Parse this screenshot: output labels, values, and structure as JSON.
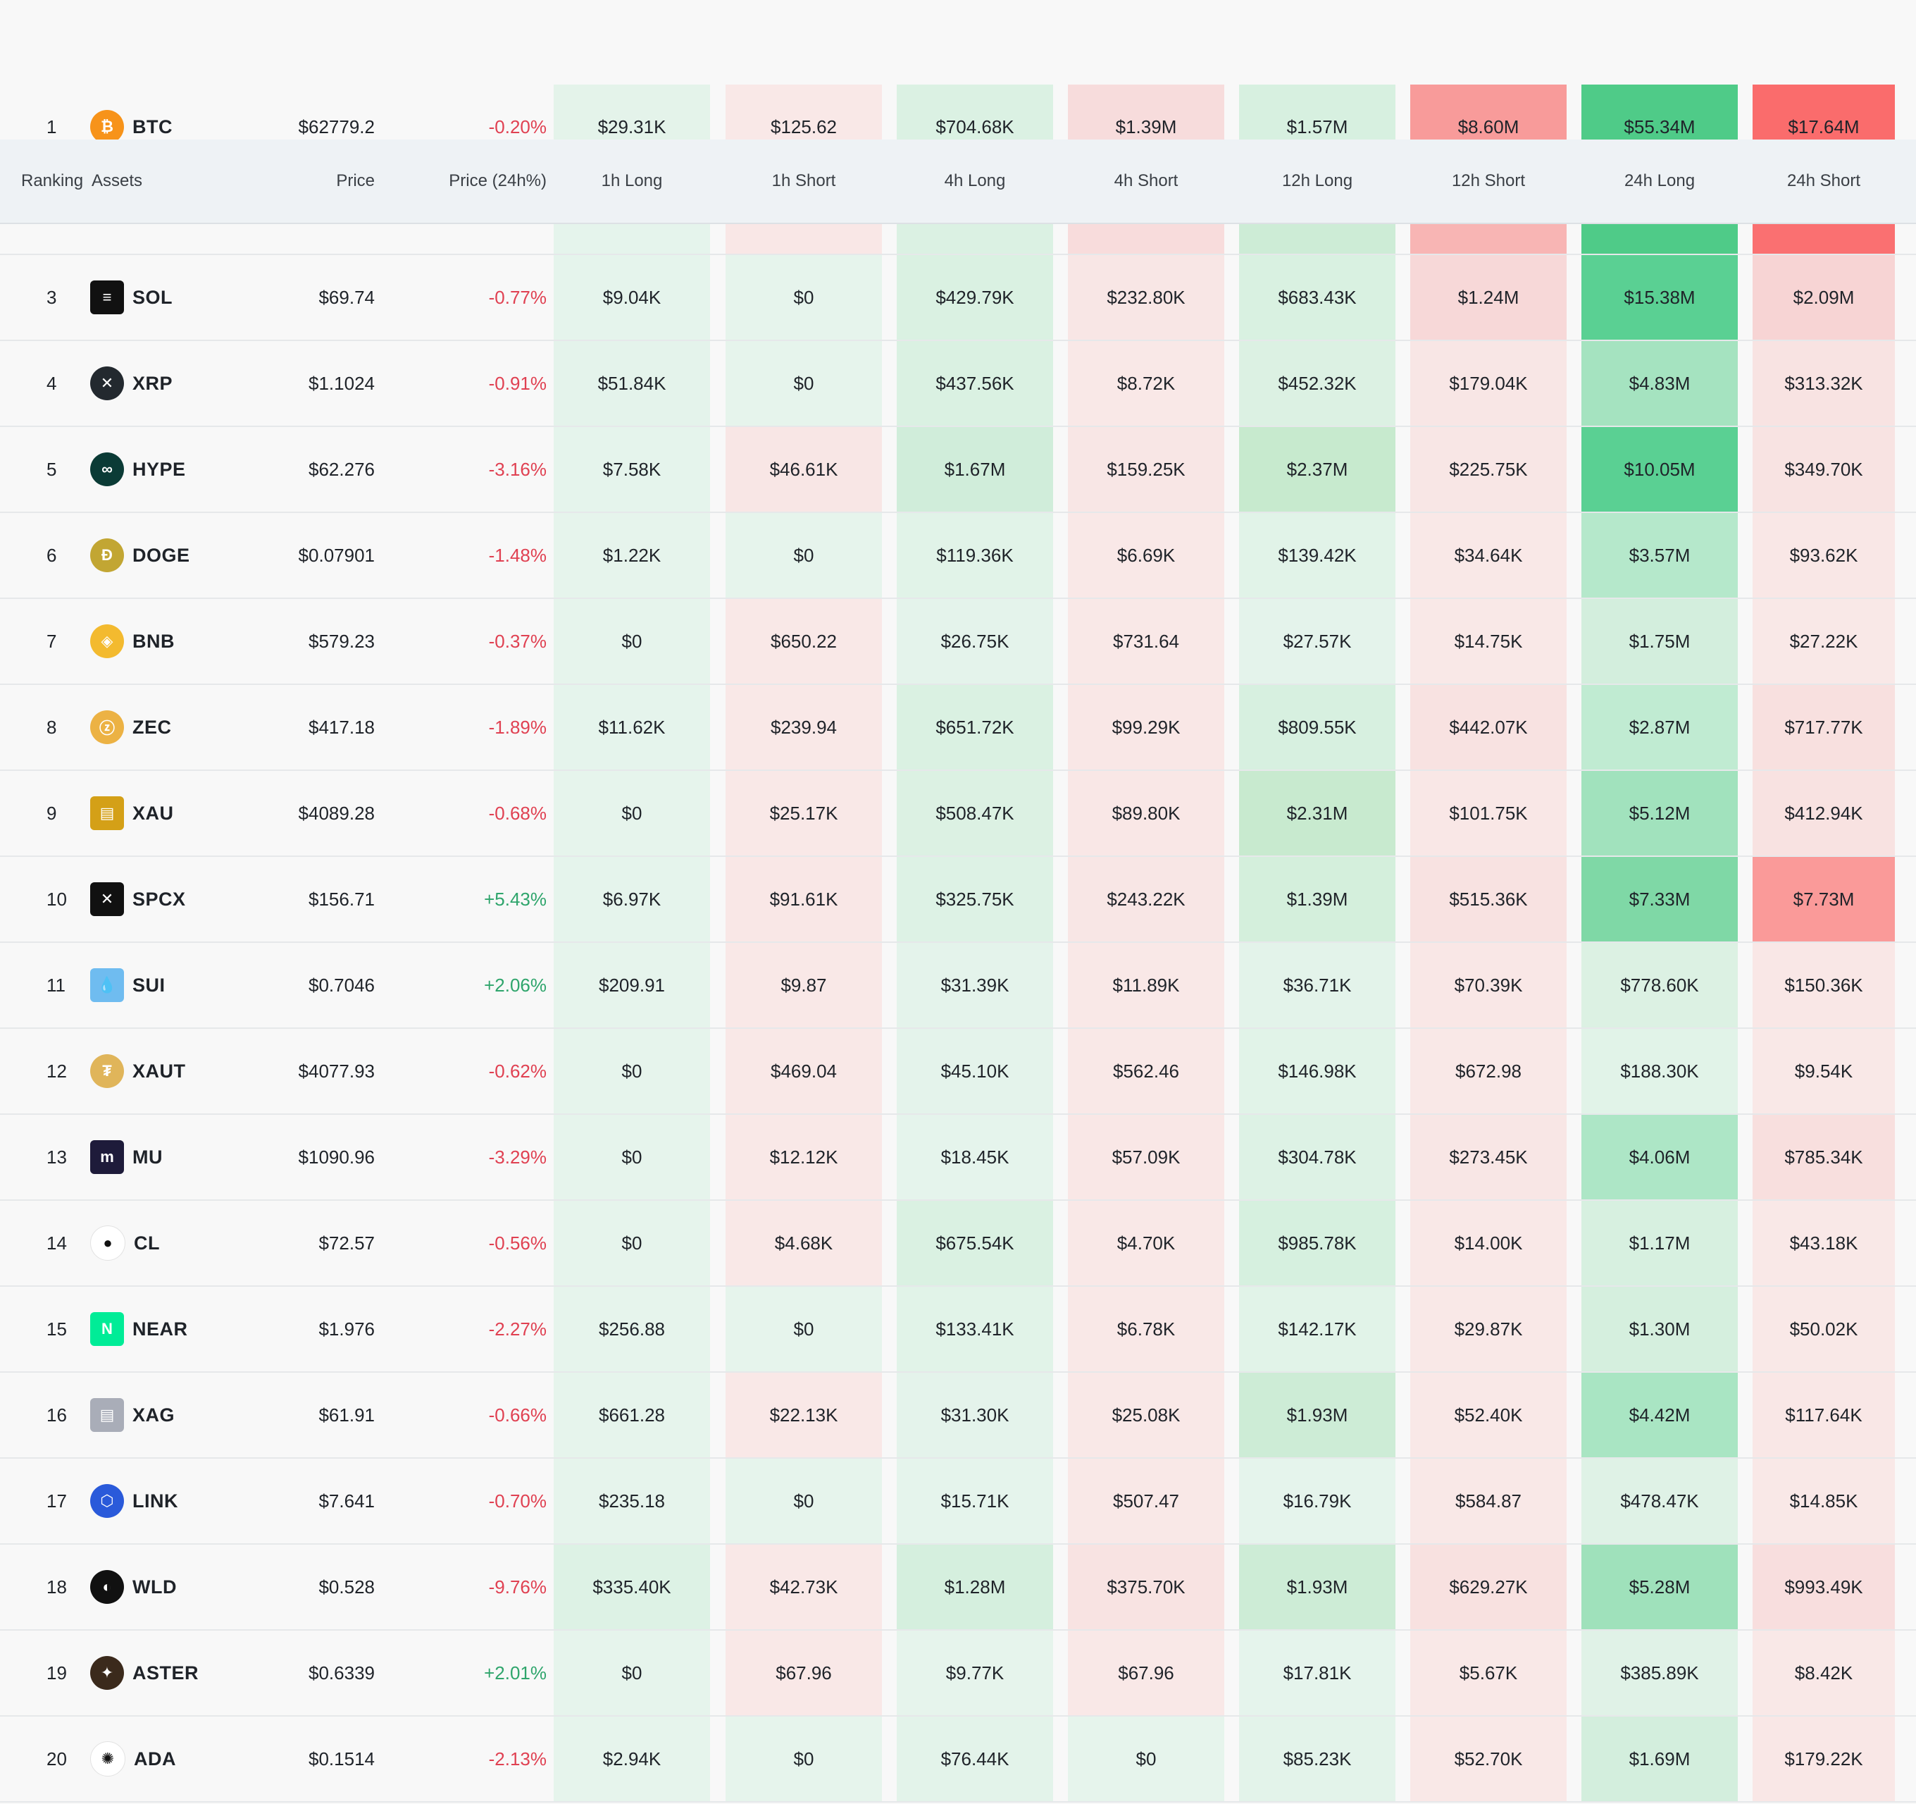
{
  "colors": {
    "negative_text": "#e04152",
    "positive_text": "#2fa56c",
    "header_bg": "#eef2f5",
    "page_bg": "#f8f8f8"
  },
  "header": {
    "ranking": "Ranking",
    "assets": "Assets",
    "price": "Price",
    "price_change": "Price (24h%)",
    "h1_long": "1h Long",
    "h1_short": "1h Short",
    "h4_long": "4h Long",
    "h4_short": "4h Short",
    "h12_long": "12h Long",
    "h12_short": "12h Short",
    "h24_long": "24h Long",
    "h24_short": "24h Short"
  },
  "rows": [
    {
      "rank": "1",
      "symbol": "BTC",
      "icon": "bitcoin-icon",
      "glyph": "₿",
      "icon_color": "#f7931a",
      "price": "$62779.2",
      "change": "-0.20%",
      "direction": "neg",
      "cells": [
        "$29.31K",
        "$125.62",
        "$704.68K",
        "$1.39M",
        "$1.57M",
        "$8.60M",
        "$55.34M",
        "$17.64M"
      ],
      "colors": [
        "#e4f3ea",
        "#f9e8e7",
        "#dbf1e3",
        "#f7dcdc",
        "#d7f0e0",
        "#f89b9a",
        "#4fcb88",
        "#fa6c6c"
      ]
    },
    {
      "rank": "3",
      "symbol": "SOL",
      "icon": "solana-icon",
      "glyph": "≡",
      "icon_color": "#111111",
      "sq": true,
      "price": "$69.74",
      "change": "-0.77%",
      "direction": "neg",
      "cells": [
        "$9.04K",
        "$0",
        "$429.79K",
        "$232.80K",
        "$683.43K",
        "$1.24M",
        "$15.38M",
        "$2.09M"
      ],
      "colors": [
        "#e5f4ec",
        "#e6f4ec",
        "#daf1e2",
        "#f8e6e5",
        "#d9f1e1",
        "#f7d8d8",
        "#5ad093",
        "#f7d4d4"
      ]
    },
    {
      "rank": "4",
      "symbol": "XRP",
      "icon": "xrp-icon",
      "glyph": "✕",
      "icon_color": "#23292f",
      "price": "$1.1024",
      "change": "-0.91%",
      "direction": "neg",
      "cells": [
        "$51.84K",
        "$0",
        "$437.56K",
        "$8.72K",
        "$452.32K",
        "$179.04K",
        "$4.83M",
        "$313.32K"
      ],
      "colors": [
        "#e4f3eb",
        "#e6f4ec",
        "#daf1e2",
        "#f9e8e7",
        "#dcf1e3",
        "#f8e6e5",
        "#a5e3c0",
        "#f8e3e2"
      ]
    },
    {
      "rank": "5",
      "symbol": "HYPE",
      "icon": "hyperliquid-icon",
      "glyph": "∞",
      "icon_color": "#0b3b36",
      "price": "$62.276",
      "change": "-3.16%",
      "direction": "neg",
      "cells": [
        "$7.58K",
        "$46.61K",
        "$1.67M",
        "$159.25K",
        "$2.37M",
        "$225.75K",
        "$10.05M",
        "$349.70K"
      ],
      "colors": [
        "#e5f4ec",
        "#f8e6e5",
        "#d0edda",
        "#f8e6e5",
        "#c7eace",
        "#f8e6e5",
        "#5ad093",
        "#f8e3e2"
      ]
    },
    {
      "rank": "6",
      "symbol": "DOGE",
      "icon": "dogecoin-icon",
      "glyph": "Ð",
      "icon_color": "#c2a633",
      "price": "$0.07901",
      "change": "-1.48%",
      "direction": "neg",
      "cells": [
        "$1.22K",
        "$0",
        "$119.36K",
        "$6.69K",
        "$139.42K",
        "$34.64K",
        "$3.57M",
        "$93.62K"
      ],
      "colors": [
        "#e6f4ec",
        "#e6f4ec",
        "#e1f3e8",
        "#f9e8e7",
        "#e1f3e8",
        "#f9e8e7",
        "#b5e8cb",
        "#f9e7e6"
      ]
    },
    {
      "rank": "7",
      "symbol": "BNB",
      "icon": "bnb-icon",
      "glyph": "◈",
      "icon_color": "#f3ba2f",
      "price": "$579.23",
      "change": "-0.37%",
      "direction": "neg",
      "cells": [
        "$0",
        "$650.22",
        "$26.75K",
        "$731.64",
        "$27.57K",
        "$14.75K",
        "$1.75M",
        "$27.22K"
      ],
      "colors": [
        "#e6f4ec",
        "#f9e8e7",
        "#e4f3eb",
        "#f9e8e7",
        "#e4f3eb",
        "#f9e8e7",
        "#d3eedd",
        "#f9e8e7"
      ]
    },
    {
      "rank": "8",
      "symbol": "ZEC",
      "icon": "zcash-icon",
      "glyph": "ⓩ",
      "icon_color": "#ecb244",
      "price": "$417.18",
      "change": "-1.89%",
      "direction": "neg",
      "cells": [
        "$11.62K",
        "$239.94",
        "$651.72K",
        "$99.29K",
        "$809.55K",
        "$442.07K",
        "$2.87M",
        "$717.77K"
      ],
      "colors": [
        "#e5f4ec",
        "#f9e8e7",
        "#daf1e2",
        "#f9e7e6",
        "#d7f0e0",
        "#f8e2e1",
        "#c0ebd2",
        "#f8e0df"
      ]
    },
    {
      "rank": "9",
      "symbol": "XAU",
      "icon": "gold-icon",
      "glyph": "▤",
      "icon_color": "#d4a017",
      "sq": true,
      "price": "$4089.28",
      "change": "-0.68%",
      "direction": "neg",
      "cells": [
        "$0",
        "$25.17K",
        "$508.47K",
        "$89.80K",
        "$2.31M",
        "$101.75K",
        "$5.12M",
        "$412.94K"
      ],
      "colors": [
        "#e6f4ec",
        "#f9e8e7",
        "#dcf1e3",
        "#f9e7e6",
        "#c8eacf",
        "#f9e7e6",
        "#a1e2bd",
        "#f8e2e1"
      ]
    },
    {
      "rank": "10",
      "symbol": "SPCX",
      "icon": "spacex-icon",
      "glyph": "✕",
      "icon_color": "#111111",
      "sq": true,
      "price": "$156.71",
      "change": "+5.43%",
      "direction": "pos",
      "cells": [
        "$6.97K",
        "$91.61K",
        "$325.75K",
        "$243.22K",
        "$1.39M",
        "$515.36K",
        "$7.33M",
        "$7.73M"
      ],
      "colors": [
        "#e5f4ec",
        "#f9e7e6",
        "#ddf2e5",
        "#f8e6e5",
        "#d4efdc",
        "#f8e2e1",
        "#7fd8a6",
        "#fa9a99"
      ]
    },
    {
      "rank": "11",
      "symbol": "SUI",
      "icon": "sui-icon",
      "glyph": "💧",
      "icon_color": "#6fbcf0",
      "sq": true,
      "price": "$0.7046",
      "change": "+2.06%",
      "direction": "pos",
      "cells": [
        "$209.91",
        "$9.87",
        "$31.39K",
        "$11.89K",
        "$36.71K",
        "$70.39K",
        "$778.60K",
        "$150.36K"
      ],
      "colors": [
        "#e6f4ec",
        "#f9e8e7",
        "#e4f3eb",
        "#f9e8e7",
        "#e3f3ea",
        "#f9e7e6",
        "#dcf1e3",
        "#f9e7e6"
      ]
    },
    {
      "rank": "12",
      "symbol": "XAUT",
      "icon": "tether-gold-icon",
      "glyph": "₮",
      "icon_color": "#e0b55a",
      "price": "$4077.93",
      "change": "-0.62%",
      "direction": "neg",
      "cells": [
        "$0",
        "$469.04",
        "$45.10K",
        "$562.46",
        "$146.98K",
        "$672.98",
        "$188.30K",
        "$9.54K"
      ],
      "colors": [
        "#e6f4ec",
        "#f9e8e7",
        "#e4f3eb",
        "#f9e8e7",
        "#e1f3e8",
        "#f9e8e7",
        "#e1f3e8",
        "#f9e8e7"
      ]
    },
    {
      "rank": "13",
      "symbol": "MU",
      "icon": "micron-icon",
      "glyph": "m",
      "icon_color": "#1e1b3a",
      "sq": true,
      "price": "$1090.96",
      "change": "-3.29%",
      "direction": "neg",
      "cells": [
        "$0",
        "$12.12K",
        "$18.45K",
        "$57.09K",
        "$304.78K",
        "$273.45K",
        "$4.06M",
        "$785.34K"
      ],
      "colors": [
        "#e6f4ec",
        "#f9e8e7",
        "#e5f4ec",
        "#f9e7e6",
        "#ddf2e5",
        "#f8e6e5",
        "#ade6c6",
        "#f8dfde"
      ]
    },
    {
      "rank": "14",
      "symbol": "CL",
      "icon": "crude-oil-icon",
      "glyph": "●",
      "icon_color": "#ffffff",
      "price": "$72.57",
      "change": "-0.56%",
      "direction": "neg",
      "cells": [
        "$0",
        "$4.68K",
        "$675.54K",
        "$4.70K",
        "$985.78K",
        "$14.00K",
        "$1.17M",
        "$43.18K"
      ],
      "colors": [
        "#e6f4ec",
        "#f9e8e7",
        "#daf1e2",
        "#f9e8e7",
        "#d6f0df",
        "#f9e8e7",
        "#d7f0e0",
        "#f9e8e7"
      ]
    },
    {
      "rank": "15",
      "symbol": "NEAR",
      "icon": "near-icon",
      "glyph": "N",
      "icon_color": "#00ec97",
      "sq": true,
      "price": "$1.976",
      "change": "-2.27%",
      "direction": "neg",
      "cells": [
        "$256.88",
        "$0",
        "$133.41K",
        "$6.78K",
        "$142.17K",
        "$29.87K",
        "$1.30M",
        "$50.02K"
      ],
      "colors": [
        "#e6f4ec",
        "#e6f4ec",
        "#e1f3e8",
        "#f9e8e7",
        "#e1f3e8",
        "#f9e8e7",
        "#d5efde",
        "#f9e8e7"
      ]
    },
    {
      "rank": "16",
      "symbol": "XAG",
      "icon": "silver-icon",
      "glyph": "▤",
      "icon_color": "#a9adb8",
      "sq": true,
      "price": "$61.91",
      "change": "-0.66%",
      "direction": "neg",
      "cells": [
        "$661.28",
        "$22.13K",
        "$31.30K",
        "$25.08K",
        "$1.93M",
        "$52.40K",
        "$4.42M",
        "$117.64K"
      ],
      "colors": [
        "#e6f4ec",
        "#f9e8e7",
        "#e4f3eb",
        "#f9e8e7",
        "#cdecd6",
        "#f9e8e7",
        "#a9e5c3",
        "#f9e7e6"
      ]
    },
    {
      "rank": "17",
      "symbol": "LINK",
      "icon": "chainlink-icon",
      "glyph": "⬡",
      "icon_color": "#2a5ada",
      "price": "$7.641",
      "change": "-0.70%",
      "direction": "neg",
      "cells": [
        "$235.18",
        "$0",
        "$15.71K",
        "$507.47",
        "$16.79K",
        "$584.87",
        "$478.47K",
        "$14.85K"
      ],
      "colors": [
        "#e6f4ec",
        "#e6f4ec",
        "#e5f4ec",
        "#f9e8e7",
        "#e5f4ec",
        "#f9e8e7",
        "#dff2e6",
        "#f9e8e7"
      ]
    },
    {
      "rank": "18",
      "symbol": "WLD",
      "icon": "worldcoin-icon",
      "glyph": "◐",
      "icon_color": "#111111",
      "price": "$0.528",
      "change": "-9.76%",
      "direction": "neg",
      "cells": [
        "$335.40K",
        "$42.73K",
        "$1.28M",
        "$375.70K",
        "$1.93M",
        "$629.27K",
        "$5.28M",
        "$993.49K"
      ],
      "colors": [
        "#ddf2e5",
        "#f9e8e7",
        "#d5efde",
        "#f8e3e2",
        "#cdecd6",
        "#f8e1e0",
        "#9fe1bb",
        "#f8dede"
      ]
    },
    {
      "rank": "19",
      "symbol": "ASTER",
      "icon": "aster-icon",
      "glyph": "✦",
      "icon_color": "#3b2a1c",
      "price": "$0.6339",
      "change": "+2.01%",
      "direction": "pos",
      "cells": [
        "$0",
        "$67.96",
        "$9.77K",
        "$67.96",
        "$17.81K",
        "$5.67K",
        "$385.89K",
        "$8.42K"
      ],
      "colors": [
        "#e6f4ec",
        "#f9e8e7",
        "#e6f4ec",
        "#f9e8e7",
        "#e5f4ec",
        "#f9e8e7",
        "#e0f2e7",
        "#f9e8e7"
      ]
    },
    {
      "rank": "20",
      "symbol": "ADA",
      "icon": "cardano-icon",
      "glyph": "✺",
      "icon_color": "#ffffff",
      "price": "$0.1514",
      "change": "-2.13%",
      "direction": "neg",
      "cells": [
        "$2.94K",
        "$0",
        "$76.44K",
        "$0",
        "$85.23K",
        "$52.70K",
        "$1.69M",
        "$179.22K"
      ],
      "colors": [
        "#e6f4ec",
        "#e6f4ec",
        "#e3f3ea",
        "#e6f4ec",
        "#e3f3ea",
        "#f9e8e7",
        "#d3eedd",
        "#f9e7e6"
      ]
    }
  ],
  "row2_partial_colors": [
    "#e5f4ec",
    "#f9e7e6",
    "#dbf1e3",
    "#f8dcdc",
    "#cdecd6",
    "#f8b5b4",
    "#4fcb88",
    "#fa7071"
  ]
}
